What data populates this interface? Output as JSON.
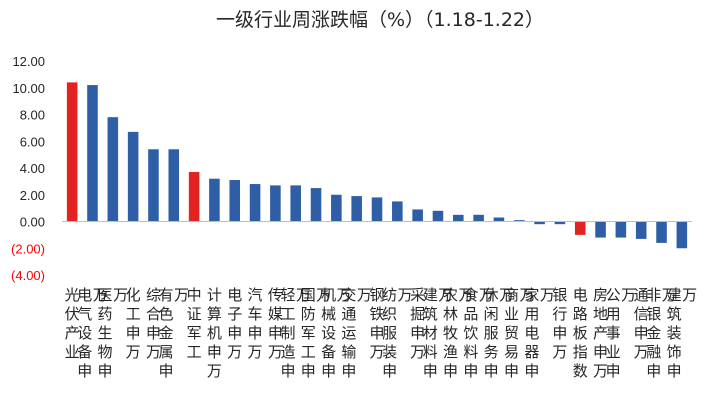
{
  "chart_data": {
    "type": "bar",
    "title": "一级行业周涨跌幅（%）（1.18-1.22）",
    "ylim": [
      -4,
      12
    ],
    "yticks": [
      "12.00",
      "10.00",
      "8.00",
      "6.00",
      "4.00",
      "2.00",
      "0.00",
      "(2.00)",
      "(4.00)"
    ],
    "negative_tick_color": "#ff0000",
    "bar_color": "#2e5fa6",
    "highlight_color": "#e32222",
    "grid": false,
    "categories": [
      "光伏产业",
      "电气设备申万",
      "医药生物申万",
      "化工申万",
      "综合申万",
      "有色金属申万",
      "中证军工",
      "计算机申万",
      "电子申万",
      "汽车申万",
      "传媒申万",
      "轻工制造申万",
      "国防军工申万",
      "机械设备申万",
      "交通运输申万",
      "钢铁申万",
      "纺织服装申万",
      "采掘申万",
      "建筑材料申万",
      "农林牧渔申万",
      "食品饮料申万",
      "休闲服务申万",
      "商业贸易申万",
      "家用电器申万",
      "银行申万",
      "电路板指数",
      "房地产申万",
      "公用事业申万",
      "通信申万",
      "非银金融申万",
      "建筑装饰申万"
    ],
    "values": [
      10.4,
      10.2,
      7.8,
      6.7,
      5.4,
      5.4,
      3.7,
      3.2,
      3.1,
      2.8,
      2.7,
      2.7,
      2.5,
      2.0,
      1.9,
      1.8,
      1.5,
      0.9,
      0.8,
      0.5,
      0.5,
      0.3,
      0.1,
      -0.2,
      -0.2,
      -1.0,
      -1.2,
      -1.2,
      -1.3,
      -1.6,
      -2.0
    ],
    "highlighted": [
      "光伏产业",
      "中证军工",
      "电路板指数"
    ]
  }
}
